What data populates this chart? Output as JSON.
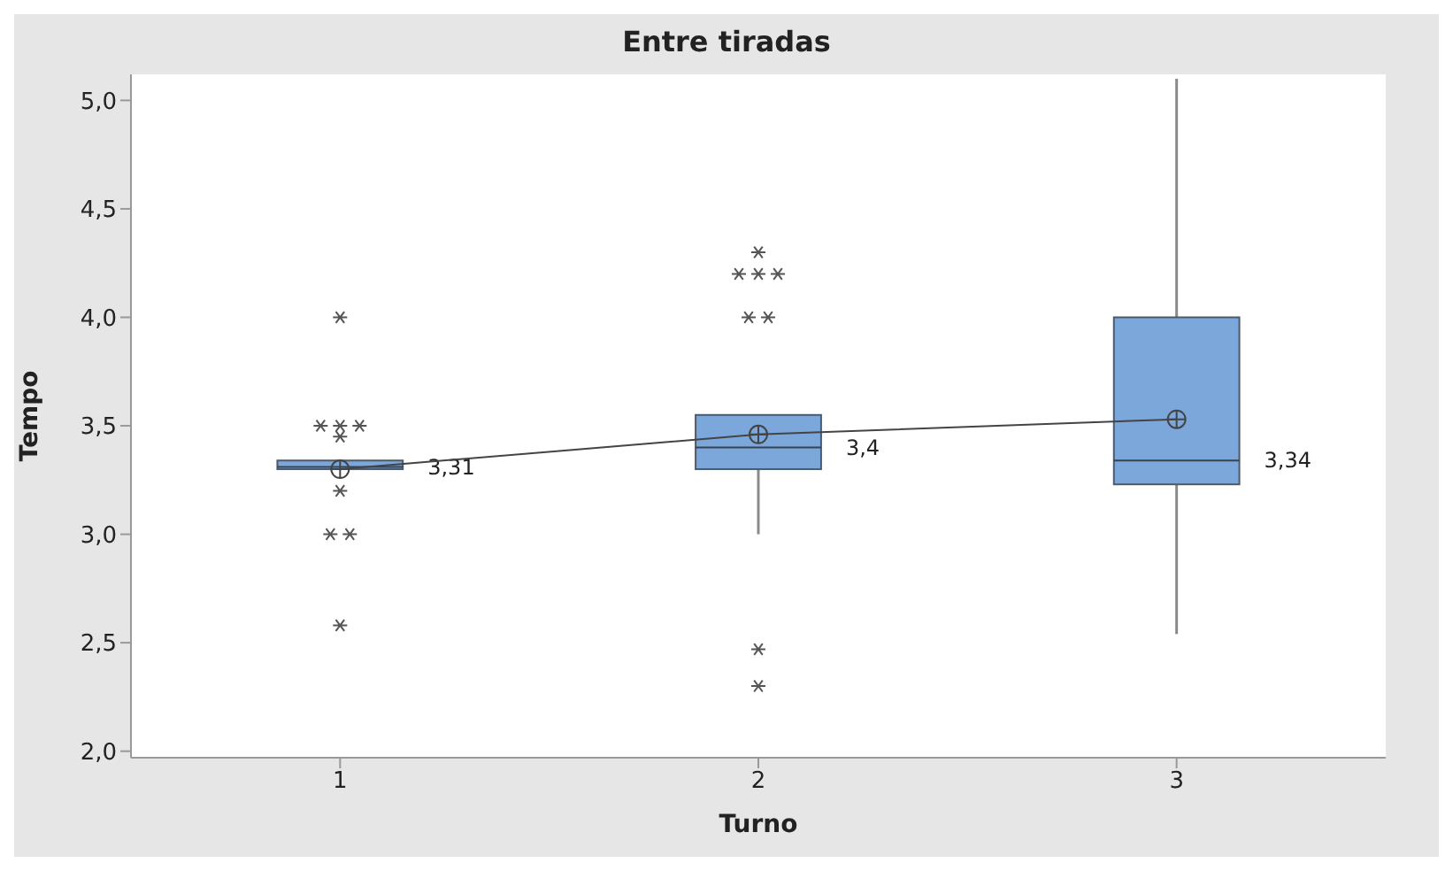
{
  "chart_data": {
    "type": "box",
    "title": "Entre tiradas",
    "xlabel": "Turno",
    "ylabel": "Tempo",
    "categories": [
      "1",
      "2",
      "3"
    ],
    "color": "#7ba7db",
    "boxes": [
      {
        "low": 3.3,
        "q1": 3.3,
        "median": 3.31,
        "q3": 3.34,
        "high": 3.34,
        "mean": 3.3,
        "outliers": [
          4.0,
          3.5,
          3.5,
          3.5,
          3.45,
          3.2,
          3.0,
          3.0,
          2.58
        ]
      },
      {
        "low": 3.0,
        "q1": 3.3,
        "median": 3.4,
        "q3": 3.55,
        "high": 3.55,
        "mean": 3.46,
        "outliers": [
          4.3,
          4.2,
          4.2,
          4.2,
          4.0,
          4.0,
          2.47,
          2.3
        ]
      },
      {
        "low": 2.54,
        "q1": 3.23,
        "median": 3.34,
        "q3": 4.0,
        "high": 5.1,
        "mean": 3.53
      }
    ],
    "series": [
      {
        "type": "line",
        "color": "#444444",
        "values": [
          3.3,
          3.46,
          3.53
        ]
      }
    ],
    "value_labels": [
      "3,31",
      "3,4",
      "3,34"
    ],
    "ylim": [
      1.97,
      5.12
    ],
    "yticks": [
      {
        "value": 2,
        "label": "2,0"
      },
      {
        "value": 2.5,
        "label": "2,5"
      },
      {
        "value": 3,
        "label": "3,0"
      },
      {
        "value": 3.5,
        "label": "3,5"
      },
      {
        "value": 4,
        "label": "4,0"
      },
      {
        "value": 4.5,
        "label": "4,5"
      },
      {
        "value": 5,
        "label": "5,0"
      }
    ],
    "grid": false
  }
}
